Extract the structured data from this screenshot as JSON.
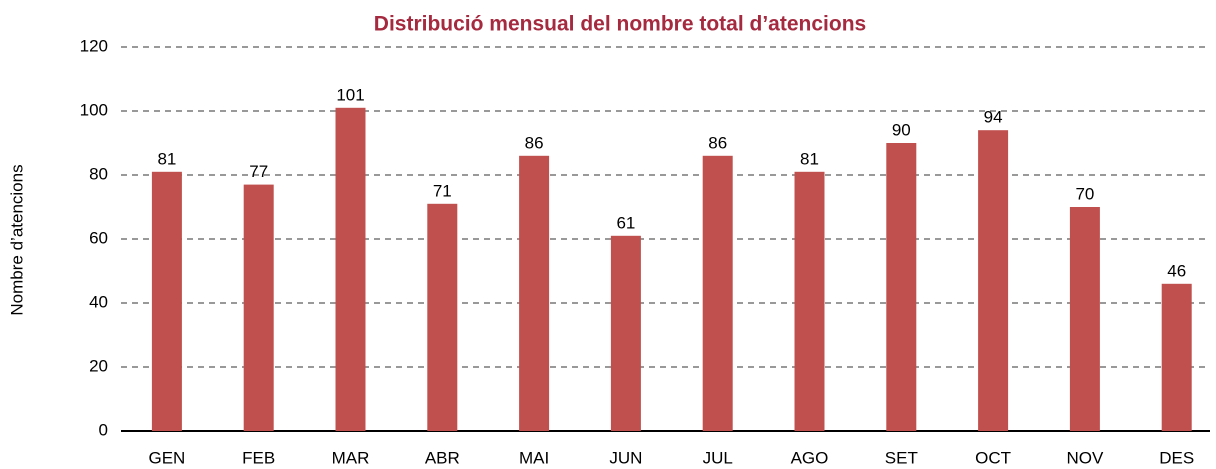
{
  "chart_data": {
    "type": "bar",
    "title": "Distribució mensual del nombre total d’atencions",
    "y_label": "Nombre d’atencions",
    "categories": [
      "GEN",
      "FEB",
      "MAR",
      "ABR",
      "MAI",
      "JUN",
      "JUL",
      "AGO",
      "SET",
      "OCT",
      "NOV",
      "DES"
    ],
    "values": [
      81,
      77,
      101,
      71,
      86,
      61,
      86,
      81,
      90,
      94,
      70,
      46
    ],
    "color": "#c0504d",
    "ylim": [
      0,
      120
    ],
    "yticks": [
      0,
      20,
      40,
      60,
      80,
      100,
      120
    ],
    "grid": true
  }
}
